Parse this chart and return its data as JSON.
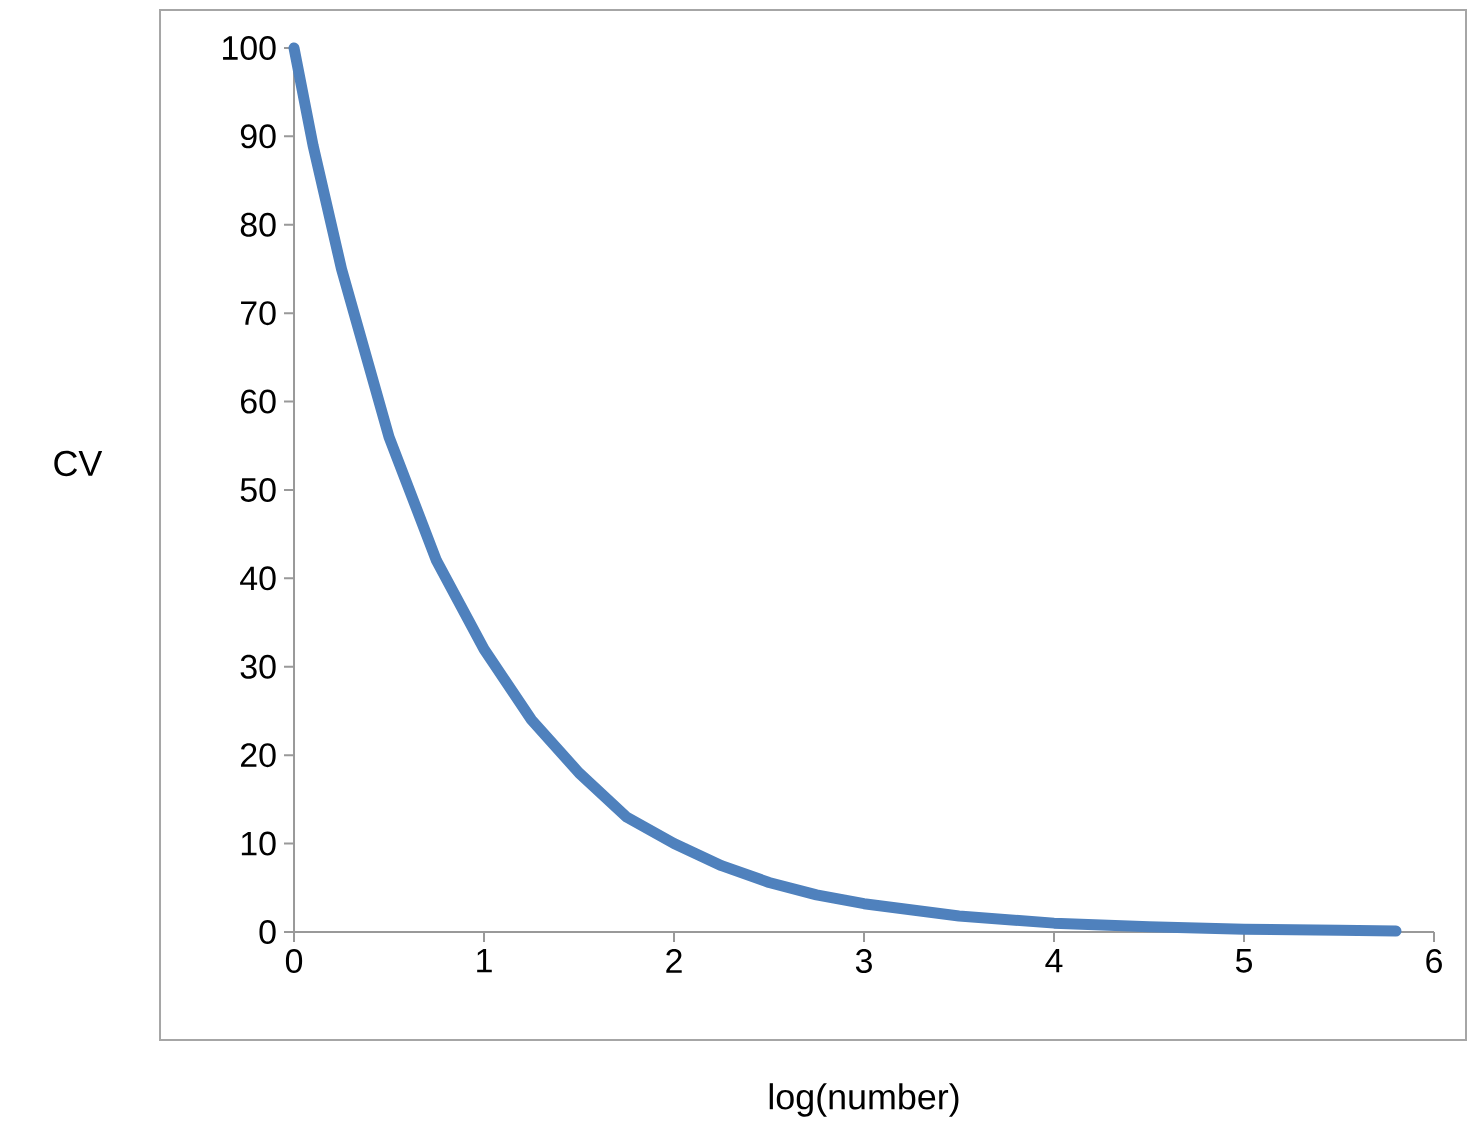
{
  "chart_data": {
    "type": "line",
    "xlabel": "log(number)",
    "ylabel": "CV",
    "x": [
      0,
      0.1,
      0.25,
      0.5,
      0.75,
      1,
      1.25,
      1.5,
      1.75,
      2,
      2.25,
      2.5,
      2.75,
      3,
      3.5,
      4,
      4.5,
      5,
      5.5,
      5.8
    ],
    "series": [
      {
        "color": "#4f81bd",
        "values": [
          100,
          89,
          75,
          56,
          42,
          32,
          24,
          18,
          13,
          10,
          7.5,
          5.6,
          4.2,
          3.2,
          1.8,
          1,
          0.6,
          0.3,
          0.2,
          0.1
        ]
      }
    ],
    "xlim": [
      0,
      6
    ],
    "ylim": [
      0,
      100
    ],
    "xticks": [
      0,
      1,
      2,
      3,
      4,
      5,
      6
    ],
    "yticks": [
      0,
      10,
      20,
      30,
      40,
      50,
      60,
      70,
      80,
      90,
      100
    ]
  }
}
